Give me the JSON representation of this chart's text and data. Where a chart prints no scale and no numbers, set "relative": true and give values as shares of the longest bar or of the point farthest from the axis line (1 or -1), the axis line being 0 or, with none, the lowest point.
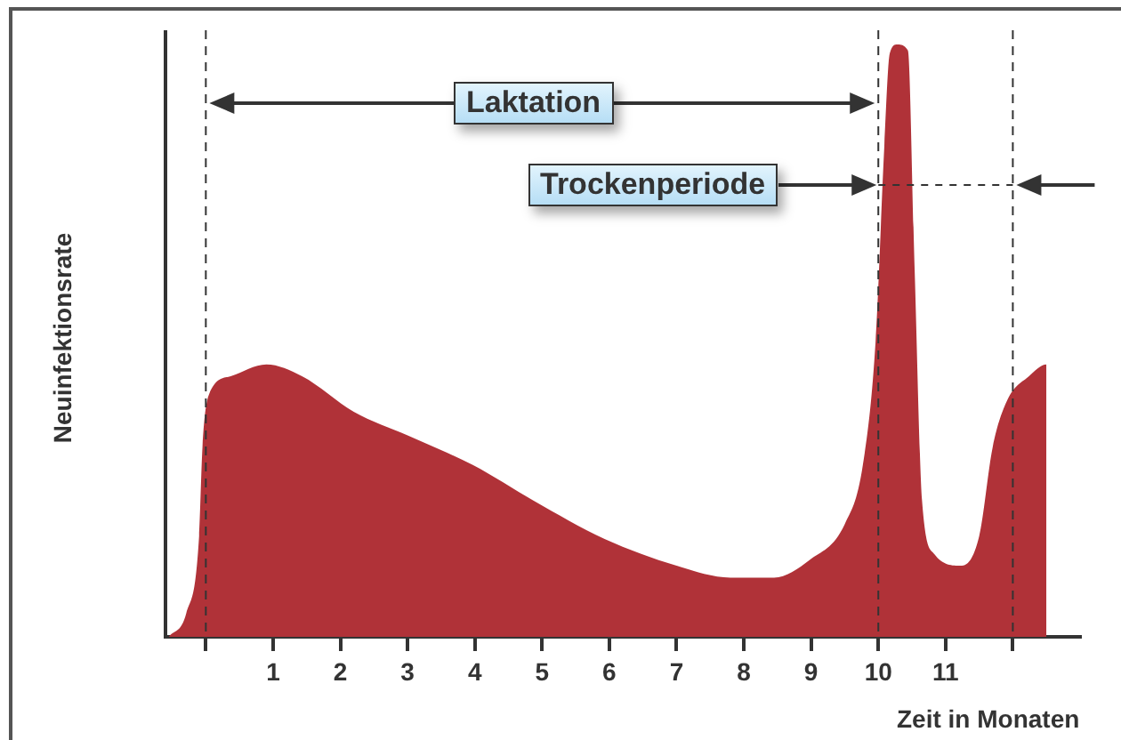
{
  "chart_data": {
    "type": "area",
    "relative": true,
    "ylabel": "Neuinfektionsrate",
    "xlabel": "Zeit in Monaten",
    "x": [
      -0.55,
      -0.29,
      -0.1,
      -0.05,
      0.05,
      0.37,
      0.9,
      1.43,
      2.2,
      3.0,
      3.97,
      4.87,
      5.93,
      7.0,
      7.8,
      8.45,
      8.98,
      9.5,
      9.77,
      9.96,
      10.09,
      10.17,
      10.28,
      10.44,
      10.54,
      10.65,
      10.83,
      11.23,
      11.5,
      11.7,
      11.92,
      12.24,
      12.5,
      12.5
    ],
    "xlim": [
      -0.6,
      13
    ],
    "xticks": [
      {
        "value": 0,
        "label": null
      },
      1,
      2,
      3,
      4,
      5,
      6,
      7,
      8,
      9,
      10,
      11,
      {
        "value": 12,
        "label": null
      }
    ],
    "series": [
      {
        "color": "#b03238",
        "values": [
          0,
          0.04,
          0.17,
          0.32,
          0.41,
          0.44,
          0.46,
          0.44,
          0.38,
          0.34,
          0.29,
          0.23,
          0.165,
          0.12,
          0.1,
          0.1,
          0.13,
          0.19,
          0.29,
          0.5,
          0.83,
          0.985,
          1,
          0.99,
          0.62,
          0.23,
          0.14,
          0.12,
          0.17,
          0.32,
          0.4,
          0.44,
          0.46,
          0
        ]
      }
    ],
    "ref_lines": [
      {
        "axis": "x",
        "value": 0,
        "color": "#333333",
        "line_style": "dashed"
      },
      {
        "axis": "x",
        "value": 10,
        "color": "#333333",
        "line_style": "dashed"
      },
      {
        "axis": "x",
        "value": 12,
        "color": "#333333",
        "line_style": "dashed"
      }
    ],
    "annotations": [
      "Laktation",
      "Trockenperiode"
    ]
  }
}
